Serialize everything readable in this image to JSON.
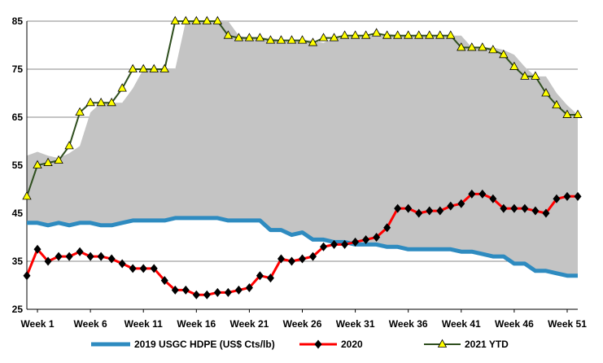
{
  "chart_data": {
    "type": "line",
    "title": "",
    "xlabel": "",
    "ylabel": "",
    "ylim": [
      25,
      85
    ],
    "yticks": [
      25,
      35,
      45,
      55,
      65,
      75,
      85
    ],
    "x_ticks": [
      1,
      6,
      11,
      16,
      21,
      26,
      31,
      36,
      41,
      46,
      51
    ],
    "x_tick_labels": [
      "Week 1",
      "Week 6",
      "Week 11",
      "Week 16",
      "Week 21",
      "Week 26",
      "Week 31",
      "Week 36",
      "Week 41",
      "Week 46",
      "Week 51"
    ],
    "grid": "horizontal",
    "legend_position": "bottom",
    "x": [
      0,
      1,
      2,
      3,
      4,
      5,
      6,
      7,
      8,
      9,
      10,
      11,
      12,
      13,
      14,
      15,
      16,
      17,
      18,
      19,
      20,
      21,
      22,
      23,
      24,
      25,
      26,
      27,
      28,
      29,
      30,
      31,
      32,
      33,
      34,
      35,
      36,
      37,
      38,
      39,
      40,
      41,
      42,
      43,
      44,
      45,
      46,
      47,
      48,
      49,
      50,
      51,
      52
    ],
    "band": {
      "description": "",
      "x": [
        0,
        1,
        2,
        3,
        4,
        5,
        6,
        7,
        8,
        9,
        10,
        11,
        12,
        13,
        14,
        15,
        16,
        17,
        18,
        19,
        20,
        21,
        22,
        23,
        24,
        25,
        26,
        27,
        28,
        29,
        30,
        31,
        32,
        33,
        34,
        35,
        36,
        37,
        38,
        39,
        40,
        41,
        42,
        43,
        44,
        45,
        46,
        47,
        48,
        49,
        50,
        51,
        52
      ],
      "upper": [
        57,
        57.8,
        57,
        56.5,
        57.5,
        59,
        66,
        68,
        68,
        68,
        71,
        75,
        75,
        75,
        75,
        85,
        85,
        85,
        85,
        85,
        82,
        81.5,
        81.5,
        81.5,
        81,
        81,
        81,
        81,
        80.5,
        81.5,
        81.5,
        82,
        82,
        82,
        82.5,
        82,
        82,
        82,
        82,
        82,
        82,
        82,
        79.5,
        79.5,
        79.5,
        79,
        78,
        75.5,
        73.5,
        73.5,
        70,
        67.5,
        65.5
      ],
      "lower": [
        43,
        43,
        42.5,
        43,
        42.5,
        43,
        43,
        42.5,
        42.5,
        43,
        43.5,
        43.5,
        43.5,
        43.5,
        44,
        44,
        44,
        44,
        44,
        43.5,
        43.5,
        43.5,
        43.5,
        41.5,
        41.5,
        40.5,
        41,
        39.5,
        39.5,
        39,
        39,
        38.5,
        38.5,
        38.5,
        38,
        38,
        37.5,
        37.5,
        37.5,
        37.5,
        37.5,
        37,
        37,
        36.5,
        36,
        36,
        34.5,
        34.5,
        33,
        33,
        32.5,
        32,
        32
      ]
    },
    "series": [
      {
        "name": "2019 USGC HDPE (US$ Cts/lb)",
        "color": "#2E8BC0",
        "marker": "none",
        "x": [
          0,
          1,
          2,
          3,
          4,
          5,
          6,
          7,
          8,
          9,
          10,
          11,
          12,
          13,
          14,
          15,
          16,
          17,
          18,
          19,
          20,
          21,
          22,
          23,
          24,
          25,
          26,
          27,
          28,
          29,
          30,
          31,
          32,
          33,
          34,
          35,
          36,
          37,
          38,
          39,
          40,
          41,
          42,
          43,
          44,
          45,
          46,
          47,
          48,
          49,
          50,
          51,
          52
        ],
        "values": [
          43,
          43,
          42.5,
          43,
          42.5,
          43,
          43,
          42.5,
          42.5,
          43,
          43.5,
          43.5,
          43.5,
          43.5,
          44,
          44,
          44,
          44,
          44,
          43.5,
          43.5,
          43.5,
          43.5,
          41.5,
          41.5,
          40.5,
          41,
          39.5,
          39.5,
          39,
          39,
          38.5,
          38.5,
          38.5,
          38,
          38,
          37.5,
          37.5,
          37.5,
          37.5,
          37.5,
          37,
          37,
          36.5,
          36,
          36,
          34.5,
          34.5,
          33,
          33,
          32.5,
          32,
          32
        ]
      },
      {
        "name": "2020",
        "color": "#FF0000",
        "marker": "diamond",
        "x": [
          0,
          1,
          2,
          3,
          4,
          5,
          6,
          7,
          8,
          9,
          10,
          11,
          12,
          13,
          14,
          15,
          16,
          17,
          18,
          19,
          20,
          21,
          22,
          23,
          24,
          25,
          26,
          27,
          28,
          29,
          30,
          31,
          32,
          33,
          34,
          35,
          36,
          37,
          38,
          39,
          40,
          41,
          42,
          43,
          44,
          45,
          46,
          47,
          48,
          49,
          50,
          51,
          52
        ],
        "values": [
          32,
          37.5,
          35,
          36,
          36,
          37,
          36,
          36,
          35.5,
          34.5,
          33.5,
          33.5,
          33.5,
          31,
          29,
          29,
          28,
          28,
          28.5,
          28.5,
          29,
          29.5,
          32,
          31.5,
          35.5,
          35,
          35.5,
          36,
          38,
          38.5,
          38.5,
          39,
          39.5,
          40,
          42,
          46,
          46,
          45,
          45.5,
          45.5,
          46.5,
          47,
          49,
          49,
          48,
          46,
          46,
          46,
          45.5,
          45,
          48,
          48.5,
          48.5
        ]
      },
      {
        "name": "2021 YTD",
        "color": "#2F4F1F",
        "marker": "triangle",
        "x": [
          0,
          1,
          2,
          3,
          4,
          5,
          6,
          7,
          8,
          9,
          10,
          11,
          12,
          13,
          14,
          15,
          16,
          17,
          18,
          19,
          20,
          21,
          22,
          23,
          24,
          25,
          26,
          27,
          28,
          29,
          30,
          31,
          32,
          33,
          34,
          35,
          36,
          37,
          38,
          39,
          40,
          41,
          42,
          43,
          44,
          45,
          46,
          47,
          48,
          49,
          50,
          51,
          52
        ],
        "values": [
          48.5,
          55,
          55.5,
          56,
          59,
          66,
          68,
          68,
          68,
          71,
          75,
          75,
          75,
          75,
          85,
          85,
          85,
          85,
          85,
          82,
          81.5,
          81.5,
          81.5,
          81,
          81,
          81,
          81,
          80.5,
          81.5,
          81.5,
          82,
          82,
          82,
          82.5,
          82,
          82,
          82,
          82,
          82,
          82,
          82,
          79.5,
          79.5,
          79.5,
          79,
          78,
          75.5,
          73.5,
          73.5,
          70,
          67.5,
          65.5,
          65.5
        ]
      }
    ]
  }
}
